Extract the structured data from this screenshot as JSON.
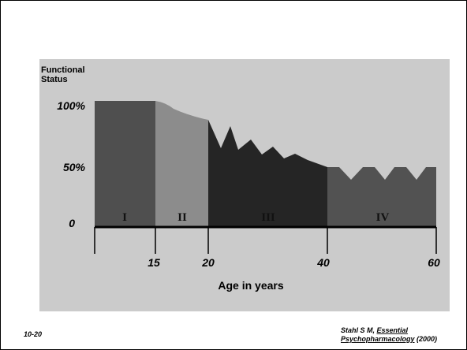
{
  "y_axis": {
    "title_lines": [
      "Functional",
      "Status"
    ],
    "labels": [
      "100%",
      "50%",
      "0"
    ]
  },
  "x_axis": {
    "title": "Age in years",
    "labels": [
      "15",
      "20",
      "40",
      "60"
    ]
  },
  "stages": [
    "I",
    "II",
    "III",
    "IV"
  ],
  "footer": {
    "slide_number": "10-20",
    "citation": {
      "author": "Stahl S M, ",
      "title_line1": "Essential",
      "title_line2": "Psychopharmacology",
      "year": " (2000)"
    }
  }
}
